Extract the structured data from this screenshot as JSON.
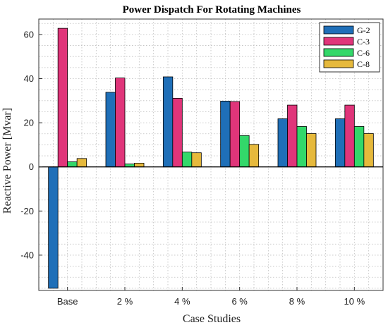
{
  "chart_data": {
    "type": "bar",
    "title": "Power Dispatch For Rotating Machines",
    "xlabel": "Case Studies",
    "ylabel": "Reactive Power [Mvar]",
    "categories": [
      "Base",
      "2 %",
      "4 %",
      "6 %",
      "8 %",
      "10 %"
    ],
    "ylim": [
      -56,
      67
    ],
    "yticks": [
      -40,
      -20,
      0,
      20,
      40,
      60
    ],
    "grid": true,
    "legend_position": "top-right",
    "series": [
      {
        "name": "G-2",
        "color": "#1f6fb8",
        "values": [
          -55,
          33.8,
          40.8,
          29.8,
          21.8,
          21.8
        ]
      },
      {
        "name": "C-3",
        "color": "#e0357a",
        "values": [
          62.8,
          40.3,
          31.1,
          29.6,
          28.0,
          28.0
        ]
      },
      {
        "name": "C-6",
        "color": "#33d86a",
        "values": [
          2.3,
          1.3,
          6.7,
          14.2,
          18.3,
          18.3
        ]
      },
      {
        "name": "C-8",
        "color": "#e6b93c",
        "values": [
          3.8,
          1.7,
          6.4,
          10.2,
          15.1,
          15.1
        ]
      }
    ]
  }
}
